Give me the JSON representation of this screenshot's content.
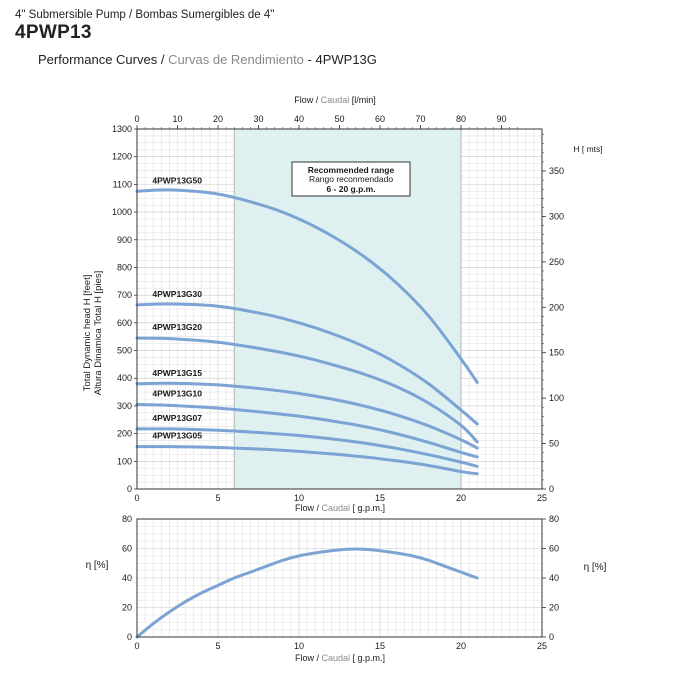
{
  "header": {
    "subtitle": "4\" Submersible Pump / Bombas Sumergibles de 4\"",
    "model": "4PWP13",
    "perf_en": "Performance Curves /",
    "perf_es": "Curvas de Rendimiento",
    "perf_model": "- 4PWP13G"
  },
  "chart_data": [
    {
      "type": "line",
      "title": "",
      "top_axis": {
        "label_en": "Flow /",
        "label_es": "Caudal",
        "label_unit": "[l/min]",
        "range": [
          0,
          100
        ],
        "ticks": [
          0,
          10,
          20,
          30,
          40,
          50,
          60,
          70,
          80,
          90
        ]
      },
      "x_axis": {
        "label_en": "Flow /",
        "label_es": "Caudal",
        "label_unit": "[ g.p.m.]",
        "range": [
          0,
          25
        ],
        "ticks": [
          0,
          5,
          10,
          15,
          20,
          25
        ]
      },
      "y_axis_left": {
        "label_line1": "Total Dynamic head H [feet]",
        "label_line2": "Altura Dinamica Total H [pies]",
        "range": [
          0,
          1300
        ],
        "ticks": [
          0,
          100,
          200,
          300,
          400,
          500,
          600,
          700,
          800,
          900,
          1000,
          1100,
          1200,
          1300
        ]
      },
      "y_axis_right": {
        "label": "H [ mts]",
        "range": [
          0,
          396.24
        ],
        "ticks": [
          0,
          50,
          100,
          150,
          200,
          250,
          300,
          350
        ]
      },
      "grid": true,
      "recommended_range": {
        "x": [
          6,
          20
        ],
        "line1": "Recommended range",
        "line2": "Rango reconmendado",
        "line3": "6 - 20 g.p.m.",
        "color": "#dff0f0"
      },
      "line_color": "#7ba3d4",
      "series": [
        {
          "name": "4PWP13G50",
          "x": [
            0,
            2,
            5,
            8,
            10,
            12,
            14,
            16,
            18,
            20,
            21
          ],
          "y": [
            1075,
            1080,
            1065,
            1020,
            975,
            915,
            840,
            745,
            625,
            470,
            385
          ]
        },
        {
          "name": "4PWP13G30",
          "x": [
            0,
            2,
            5,
            8,
            10,
            12,
            14,
            16,
            18,
            20,
            21
          ],
          "y": [
            665,
            668,
            660,
            630,
            600,
            562,
            515,
            455,
            380,
            285,
            235
          ]
        },
        {
          "name": "4PWP13G20",
          "x": [
            0,
            2,
            5,
            8,
            10,
            12,
            14,
            16,
            18,
            20,
            21
          ],
          "y": [
            545,
            543,
            530,
            503,
            480,
            450,
            415,
            370,
            310,
            230,
            170
          ]
        },
        {
          "name": "4PWP13G15",
          "x": [
            0,
            2,
            5,
            8,
            10,
            12,
            14,
            16,
            18,
            20,
            21
          ],
          "y": [
            380,
            382,
            376,
            360,
            345,
            325,
            300,
            268,
            228,
            178,
            148
          ]
        },
        {
          "name": "4PWP13G10",
          "x": [
            0,
            2,
            5,
            8,
            10,
            12,
            14,
            16,
            18,
            20,
            21
          ],
          "y": [
            305,
            302,
            292,
            276,
            263,
            246,
            226,
            200,
            168,
            132,
            116
          ]
        },
        {
          "name": "4PWP13G07",
          "x": [
            0,
            2,
            5,
            8,
            10,
            12,
            14,
            16,
            18,
            20,
            21
          ],
          "y": [
            217,
            217,
            212,
            202,
            193,
            181,
            166,
            147,
            124,
            97,
            82
          ]
        },
        {
          "name": "4PWP13G05",
          "x": [
            0,
            2,
            5,
            8,
            10,
            12,
            14,
            16,
            18,
            20,
            21
          ],
          "y": [
            153,
            153,
            150,
            143,
            136,
            127,
            116,
            102,
            85,
            63,
            55
          ]
        }
      ]
    },
    {
      "type": "line",
      "title": "",
      "x_axis": {
        "label_en": "Flow /",
        "label_es": "Caudal",
        "label_unit": "[ g.p.m.]",
        "range": [
          0,
          25
        ],
        "ticks": [
          0,
          5,
          10,
          15,
          20,
          25
        ]
      },
      "y_axis_left": {
        "label": "η [%]",
        "range": [
          0,
          80
        ],
        "ticks": [
          0,
          20,
          40,
          60,
          80
        ]
      },
      "y_axis_right": {
        "label": "η [%]",
        "range": [
          0,
          80
        ],
        "ticks": [
          0,
          20,
          40,
          60,
          80
        ]
      },
      "grid": true,
      "line_color": "#7ba3d4",
      "series": [
        {
          "name": "",
          "x": [
            0,
            1,
            2,
            3,
            4,
            5,
            6,
            7,
            8,
            9,
            10,
            11,
            12,
            13,
            14,
            15,
            16,
            17,
            18,
            19,
            20,
            21
          ],
          "y": [
            0,
            9,
            17,
            24,
            30,
            35,
            40,
            44,
            48,
            52,
            55,
            57,
            58.5,
            59.5,
            59.5,
            58.5,
            57,
            55,
            52,
            48,
            44,
            40
          ]
        }
      ]
    }
  ]
}
